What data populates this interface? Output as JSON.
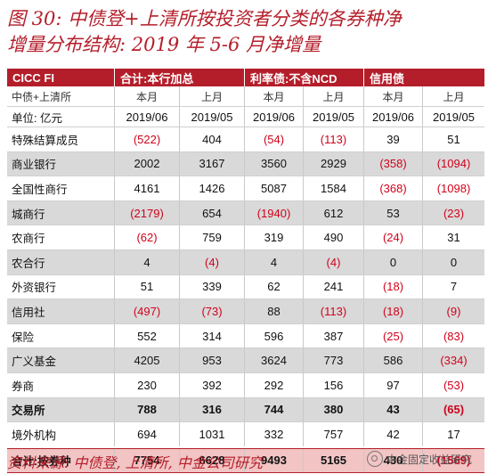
{
  "title_line1": "图 30:  中债登+上清所按投资者分类的各券种净",
  "title_line2": "增量分布结构:  2019 年 5-6 月净增量",
  "header": [
    "CICC FI",
    "合计:本行加总",
    "利率债:不含NCD",
    "信用债"
  ],
  "subheader": {
    "label": "中债+上清所",
    "cols": [
      "本月",
      "上月",
      "本月",
      "上月",
      "本月",
      "上月"
    ]
  },
  "units_row": {
    "label": "单位:  亿元",
    "cols": [
      "2019/06",
      "2019/05",
      "2019/06",
      "2019/05",
      "2019/06",
      "2019/05"
    ]
  },
  "rows": [
    {
      "label": "特殊结算成员",
      "values": [
        "(522)",
        "404",
        "(54)",
        "(113)",
        "39",
        "51"
      ],
      "shade": false,
      "bold": false
    },
    {
      "label": "商业银行",
      "values": [
        "2002",
        "3167",
        "3560",
        "2929",
        "(358)",
        "(1094)"
      ],
      "shade": true,
      "bold": false
    },
    {
      "label": "全国性商行",
      "values": [
        "4161",
        "1426",
        "5087",
        "1584",
        "(368)",
        "(1098)"
      ],
      "shade": false,
      "bold": false
    },
    {
      "label": "城商行",
      "values": [
        "(2179)",
        "654",
        "(1940)",
        "612",
        "53",
        "(23)"
      ],
      "shade": true,
      "bold": false
    },
    {
      "label": "农商行",
      "values": [
        "(62)",
        "759",
        "319",
        "490",
        "(24)",
        "31"
      ],
      "shade": false,
      "bold": false
    },
    {
      "label": "农合行",
      "values": [
        "4",
        "(4)",
        "4",
        "(4)",
        "0",
        "0"
      ],
      "shade": true,
      "bold": false
    },
    {
      "label": "外资银行",
      "values": [
        "51",
        "339",
        "62",
        "241",
        "(18)",
        "7"
      ],
      "shade": false,
      "bold": false
    },
    {
      "label": "信用社",
      "values": [
        "(497)",
        "(73)",
        "88",
        "(113)",
        "(18)",
        "(9)"
      ],
      "shade": true,
      "bold": false
    },
    {
      "label": "保险",
      "values": [
        "552",
        "314",
        "596",
        "387",
        "(25)",
        "(83)"
      ],
      "shade": false,
      "bold": false
    },
    {
      "label": "广义基金",
      "values": [
        "4205",
        "953",
        "3624",
        "773",
        "586",
        "(334)"
      ],
      "shade": true,
      "bold": false
    },
    {
      "label": "券商",
      "values": [
        "230",
        "392",
        "292",
        "156",
        "97",
        "(53)"
      ],
      "shade": false,
      "bold": false
    },
    {
      "label": "交易所",
      "values": [
        "788",
        "316",
        "744",
        "380",
        "43",
        "(65)"
      ],
      "shade": true,
      "bold": true
    },
    {
      "label": "境外机构",
      "values": [
        "694",
        "1031",
        "332",
        "757",
        "42",
        "17"
      ],
      "shade": false,
      "bold": false
    }
  ],
  "total_row": {
    "label": "合计:按券种",
    "values": [
      "7754",
      "6628",
      "9493",
      "5165",
      "430",
      "(1569)"
    ]
  },
  "source": "资料来源:  中债登,  上清所,  中金公司研究",
  "watermark": "中金固定收益研究",
  "colors": {
    "brand": "#b41e2a",
    "negative": "#d0021b",
    "shade": "#d9d9d9",
    "total": "#f2c4c4"
  }
}
